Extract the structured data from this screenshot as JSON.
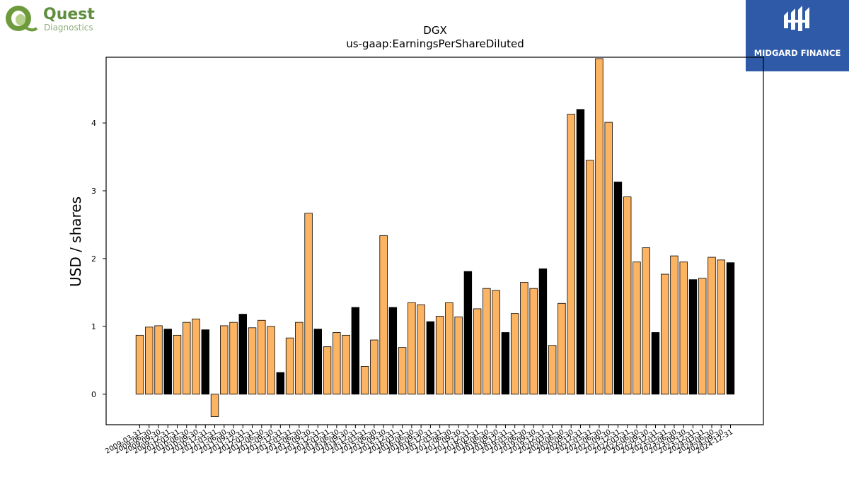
{
  "header": {
    "left_logo": {
      "brand": "Quest",
      "sub": "Diagnostics",
      "icon": "quest-q-logo-icon"
    },
    "right_logo": {
      "name": "MIDGARD FINANCE",
      "icon": "midgard-logo-icon",
      "bg": "#2e5aa8"
    }
  },
  "chart_data": {
    "type": "bar",
    "title": "DGX",
    "subtitle": "us-gaap:EarningsPerShareDiluted",
    "xlabel": "",
    "ylabel": "USD / shares",
    "ylim": [
      -0.45,
      4.97
    ],
    "yticks": [
      0,
      1,
      2,
      3,
      4
    ],
    "grid": false,
    "colors": {
      "quarterly": "#fdb462",
      "annual": "#000000",
      "edge": "#000000"
    },
    "categories": [
      "2009-03-31",
      "2009-06-30",
      "2009-09-30",
      "2009-12-31",
      "2010-03-31",
      "2010-06-30",
      "2010-09-30",
      "2010-12-31",
      "2011-03-31",
      "2011-06-30",
      "2011-09-30",
      "2011-12-31",
      "2012-03-31",
      "2012-06-30",
      "2012-09-30",
      "2012-12-31",
      "2013-03-31",
      "2013-06-30",
      "2013-09-30",
      "2013-12-31",
      "2014-03-31",
      "2014-06-30",
      "2014-09-30",
      "2014-12-31",
      "2015-03-31",
      "2015-06-30",
      "2015-09-30",
      "2015-12-31",
      "2016-03-31",
      "2016-06-30",
      "2016-09-30",
      "2016-12-31",
      "2017-03-31",
      "2017-06-30",
      "2017-09-30",
      "2017-12-31",
      "2018-03-31",
      "2018-06-30",
      "2018-09-30",
      "2018-12-31",
      "2019-03-31",
      "2019-06-30",
      "2019-09-30",
      "2019-12-31",
      "2020-03-31",
      "2020-06-30",
      "2020-09-30",
      "2020-12-31",
      "2021-03-31",
      "2021-06-30",
      "2021-09-30",
      "2021-12-31",
      "2022-03-31",
      "2022-06-30",
      "2022-09-30",
      "2022-12-31",
      "2023-03-31",
      "2023-06-30",
      "2023-09-30",
      "2023-12-31",
      "2024-03-31",
      "2024-06-30",
      "2024-09-30",
      "2024-12-31"
    ],
    "visible_tick_labels": [
      "2009-03-31",
      "2009-06-30",
      "2009-09-30",
      "2009-12-31",
      "2010-03-31",
      "2010-06-30",
      "2010-09-30",
      "2010-12-31",
      "2011-03-31",
      "2011-06-30",
      "2011-09-30",
      "2011-12-31",
      "2012-03-31",
      "2012-06-30",
      "2012-09-30",
      "2012-12-31",
      "2013-03-31",
      "2013-06-30",
      "2013-09-30",
      "2013-12-31",
      "2014-03-31",
      "2014-06-30",
      "2014-09-30",
      "2014-12-31",
      "2015-03-31",
      "2015-06-30",
      "2015-09-30",
      "2015-12-31",
      "2016-03-31",
      "2016-06-30",
      "2016-09-30",
      "2016-12-31",
      "2017-03-31",
      "2017-06-30",
      "2017-09-30",
      "2017-12-31",
      "2018-03-31",
      "2018-06-30",
      "2018-09-30",
      "2018-12-31",
      "2019-03-31",
      "2019-06-30",
      "2019-09-30",
      "2019-12-31",
      "2020-03-31",
      "2020-06-30",
      "2020-09-30",
      "2020-12-31",
      "2021-03-31",
      "2021-06-30",
      "2021-09-30",
      "2021-12-31",
      "2022-03-31",
      "2022-06-30",
      "2022-09-30",
      "2022-12-31",
      "2023-03-31",
      "2023-06-30",
      "2023-09-30",
      "2023-12-31",
      "2024-03-31",
      "2024-06-30",
      "2024-09-30",
      "2024-12-31"
    ],
    "series": [
      {
        "values": [
          0.87,
          0.99,
          1.01,
          0.96,
          0.87,
          1.06,
          1.11,
          0.95,
          -0.33,
          1.01,
          1.06,
          1.18,
          0.98,
          1.09,
          1.0,
          0.32,
          0.83,
          1.06,
          2.67,
          0.96,
          0.7,
          0.91,
          0.87,
          1.28,
          0.41,
          0.8,
          2.34,
          1.28,
          0.69,
          1.35,
          1.32,
          1.07,
          1.15,
          1.35,
          1.14,
          1.81,
          1.26,
          1.56,
          1.53,
          0.91,
          1.19,
          1.65,
          1.56,
          1.85,
          0.72,
          1.34,
          4.13,
          4.2,
          3.45,
          4.95,
          4.01,
          3.13,
          2.91,
          1.95,
          2.16,
          0.91,
          1.77,
          2.04,
          1.95,
          1.69,
          1.71,
          2.02,
          1.98,
          1.94
        ],
        "annual": [
          false,
          false,
          false,
          true,
          false,
          false,
          false,
          true,
          false,
          false,
          false,
          true,
          false,
          false,
          false,
          true,
          false,
          false,
          false,
          true,
          false,
          false,
          false,
          true,
          false,
          false,
          false,
          true,
          false,
          false,
          false,
          true,
          false,
          false,
          false,
          true,
          false,
          false,
          false,
          true,
          false,
          false,
          false,
          true,
          false,
          false,
          false,
          true,
          false,
          false,
          false,
          true,
          false,
          false,
          false,
          true,
          false,
          false,
          false,
          true,
          false,
          false,
          false,
          true
        ]
      }
    ]
  }
}
